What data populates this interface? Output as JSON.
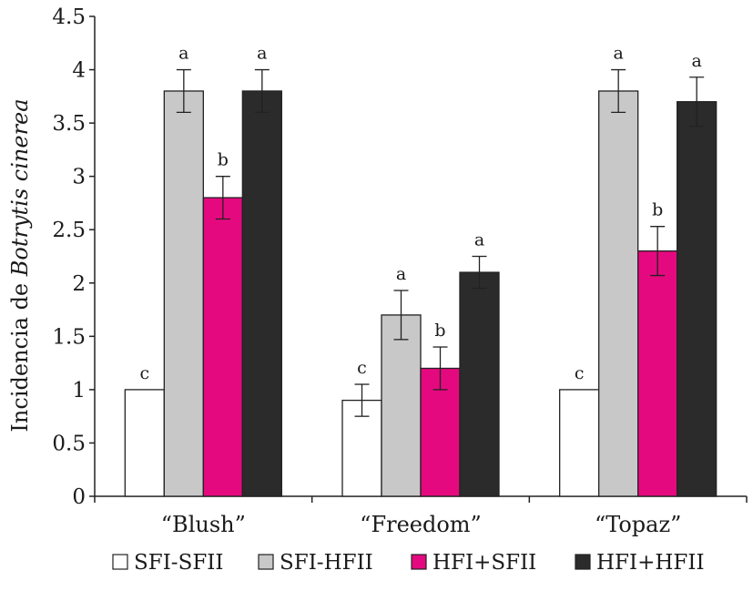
{
  "chart_data": {
    "type": "bar",
    "ylabel_prefix": "Incidencia de ",
    "ylabel_italic": "Botrytis cinerea",
    "ylim": [
      0,
      4.5
    ],
    "yticks": [
      0,
      0.5,
      1,
      1.5,
      2,
      2.5,
      3,
      3.5,
      4,
      4.5
    ],
    "ytick_labels": [
      "0",
      "0.5",
      "1",
      "1.5",
      "2",
      "2.5",
      "3",
      "3.5",
      "4",
      "4.5"
    ],
    "categories": [
      "“Blush”",
      "“Freedom”",
      "“Topaz”"
    ],
    "series": [
      {
        "name": "SFI-SFII",
        "color": "#ffffff",
        "values": [
          1.0,
          0.9,
          1.0
        ],
        "errors": [
          0,
          0.15,
          0
        ],
        "labels": [
          "c",
          "c",
          "c"
        ]
      },
      {
        "name": "SFI-HFII",
        "color": "#c8c8c8",
        "values": [
          3.8,
          1.7,
          3.8
        ],
        "errors": [
          0.2,
          0.23,
          0.2
        ],
        "labels": [
          "a",
          "a",
          "a"
        ]
      },
      {
        "name": "HFI+SFII",
        "color": "#e5097f",
        "values": [
          2.8,
          1.2,
          2.3
        ],
        "errors": [
          0.2,
          0.2,
          0.23
        ],
        "labels": [
          "b",
          "b",
          "b"
        ]
      },
      {
        "name": "HFI+HFII",
        "color": "#2b2b2b",
        "values": [
          3.8,
          2.1,
          3.7
        ],
        "errors": [
          0.2,
          0.15,
          0.23
        ],
        "labels": [
          "a",
          "a",
          "a"
        ]
      }
    ],
    "grid": false,
    "legend": "bottom"
  }
}
